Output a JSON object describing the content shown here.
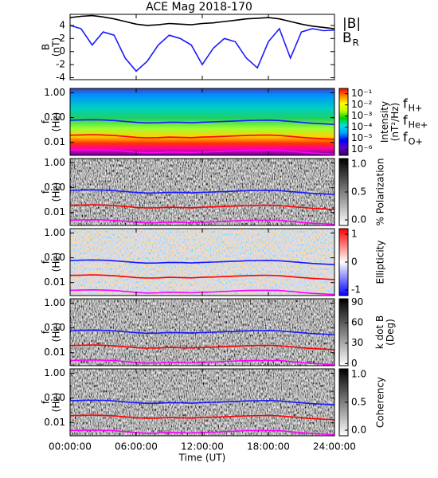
{
  "chart_data": [
    {
      "type": "line",
      "title": "ACE Mag 2018-170",
      "ylabel": [
        "B",
        "(nT)"
      ],
      "x": [
        0,
        1,
        2,
        3,
        4,
        5,
        6,
        7,
        8,
        9,
        10,
        11,
        12,
        13,
        14,
        15,
        16,
        17,
        18,
        19,
        20,
        21,
        22,
        23,
        24
      ],
      "xlim": [
        0,
        24
      ],
      "ylim": [
        -4.3,
        5.7
      ],
      "yticks": [
        -4,
        -2,
        0,
        2,
        4
      ],
      "series": [
        {
          "name": "|B|",
          "color": "#000000",
          "values": [
            5.2,
            5.4,
            5.5,
            5.3,
            5.0,
            4.6,
            4.2,
            4.0,
            4.1,
            4.3,
            4.2,
            4.1,
            4.3,
            4.4,
            4.6,
            4.8,
            5.0,
            5.1,
            5.2,
            5.0,
            4.6,
            4.2,
            3.9,
            3.7,
            3.5
          ]
        },
        {
          "name": "B",
          "subscript": "R",
          "color": "#1a1aff",
          "values": [
            4.0,
            3.5,
            1.0,
            3.0,
            2.5,
            -1.0,
            -3.0,
            -1.5,
            1.0,
            2.5,
            2.0,
            1.0,
            -2.0,
            0.5,
            2.0,
            1.5,
            -1.0,
            -2.5,
            1.5,
            3.5,
            -1.0,
            3.0,
            3.5,
            3.2,
            3.3
          ]
        }
      ]
    },
    {
      "type": "spectrogram",
      "ylabel": [
        "f",
        "(Hz)"
      ],
      "yscale": "log",
      "ylim": [
        0.003,
        1.5
      ],
      "yticks": [
        {
          "value": 1,
          "label": "1.00"
        },
        {
          "value": 0.1,
          "label": "0.10"
        },
        {
          "value": 0.01,
          "label": "0.01"
        }
      ],
      "legend": true,
      "colorbar": {
        "label": [
          "Intensity",
          "(nT²/Hz)"
        ],
        "scale": "log",
        "clim": [
          3e-07,
          0.3
        ],
        "colors": [
          "#300060",
          "#6000c0",
          "#0000ff",
          "#00a0ff",
          "#00e0e0",
          "#00d000",
          "#c0ff00",
          "#ffff00",
          "#ff8000",
          "#ff0000"
        ],
        "ticks": [
          {
            "value": 0.1,
            "label": "10⁻¹"
          },
          {
            "value": 0.01,
            "label": "10⁻²"
          },
          {
            "value": 0.001,
            "label": "10⁻³"
          },
          {
            "value": 0.0001,
            "label": "10⁻⁴"
          },
          {
            "value": 1e-05,
            "label": "10⁻⁵"
          },
          {
            "value": 1e-06,
            "label": "10⁻⁶"
          }
        ]
      }
    },
    {
      "type": "spectrogram",
      "ylabel": [
        "f",
        "(Hz)"
      ],
      "yscale": "log",
      "ylim": [
        0.003,
        1.5
      ],
      "yticks": [
        {
          "value": 1,
          "label": "1.00"
        },
        {
          "value": 0.1,
          "label": "0.10"
        },
        {
          "value": 0.01,
          "label": "0.01"
        }
      ],
      "colorbar": {
        "label": [
          "% Polarization"
        ],
        "clim": [
          -0.1,
          1.1
        ],
        "colors": [
          "#ffffff",
          "#000000"
        ],
        "ticks": [
          {
            "value": 0,
            "label": "0.0"
          },
          {
            "value": 0.5,
            "label": "0.5"
          },
          {
            "value": 1,
            "label": "1.0"
          }
        ]
      }
    },
    {
      "type": "spectrogram",
      "ylabel": [
        "f",
        "(Hz)"
      ],
      "yscale": "log",
      "ylim": [
        0.003,
        1.5
      ],
      "yticks": [
        {
          "value": 1,
          "label": "1.00"
        },
        {
          "value": 0.1,
          "label": "0.10"
        },
        {
          "value": 0.01,
          "label": "0.01"
        }
      ],
      "colorbar": {
        "label": [
          "Ellipticity"
        ],
        "clim": [
          -1.2,
          1.2
        ],
        "colors": [
          "#0000ff",
          "#ffffff",
          "#ff0000"
        ],
        "ticks": [
          -1,
          0,
          1
        ]
      }
    },
    {
      "type": "spectrogram",
      "ylabel": [
        "f",
        "(Hz)"
      ],
      "yscale": "log",
      "ylim": [
        0.003,
        1.5
      ],
      "yticks": [
        {
          "value": 1,
          "label": "1.00"
        },
        {
          "value": 0.1,
          "label": "0.10"
        },
        {
          "value": 0.01,
          "label": "0.01"
        }
      ],
      "colorbar": {
        "label": [
          "k dot B",
          "(Deg)"
        ],
        "clim": [
          -3,
          95
        ],
        "colors": [
          "#ffffff",
          "#000000"
        ],
        "ticks": [
          0,
          30,
          60,
          90
        ]
      }
    },
    {
      "type": "spectrogram",
      "ylabel": [
        "f",
        "(Hz)"
      ],
      "yscale": "log",
      "ylim": [
        0.003,
        1.5
      ],
      "yticks": [
        {
          "value": 1,
          "label": "1.00"
        },
        {
          "value": 0.1,
          "label": "0.10"
        },
        {
          "value": 0.01,
          "label": "0.01"
        }
      ],
      "colorbar": {
        "label": [
          "Coherency"
        ],
        "clim": [
          -0.1,
          1.1
        ],
        "colors": [
          "#ffffff",
          "#000000"
        ],
        "ticks": [
          {
            "value": 0,
            "label": "0.0"
          },
          {
            "value": 0.5,
            "label": "0.5"
          },
          {
            "value": 1,
            "label": "1.0"
          }
        ]
      },
      "xlabel": "Time (UT)",
      "xticks": [
        {
          "value": 0,
          "label": "00:00:00"
        },
        {
          "value": 6,
          "label": "06:00:00"
        },
        {
          "value": 12,
          "label": "12:00:00"
        },
        {
          "value": 18,
          "label": "18:00:00"
        },
        {
          "value": 24,
          "label": "24:00:00"
        }
      ]
    }
  ],
  "overlay": {
    "x": [
      0,
      1,
      2,
      3,
      4,
      5,
      6,
      7,
      8,
      9,
      10,
      11,
      12,
      13,
      14,
      15,
      16,
      17,
      18,
      19,
      20,
      21,
      22,
      23,
      24
    ],
    "series": [
      {
        "name": "f",
        "subscript": "H+",
        "color": "#1a1aff",
        "values": [
          0.078,
          0.08,
          0.082,
          0.08,
          0.076,
          0.07,
          0.064,
          0.061,
          0.062,
          0.065,
          0.064,
          0.062,
          0.065,
          0.067,
          0.07,
          0.073,
          0.076,
          0.078,
          0.079,
          0.076,
          0.07,
          0.064,
          0.059,
          0.056,
          0.053
        ]
      },
      {
        "name": "f",
        "subscript": "He+",
        "color": "#ff0000",
        "values": [
          0.0195,
          0.02,
          0.0205,
          0.02,
          0.019,
          0.0175,
          0.016,
          0.0153,
          0.0155,
          0.0163,
          0.016,
          0.0155,
          0.0163,
          0.0168,
          0.0175,
          0.0183,
          0.019,
          0.0195,
          0.0198,
          0.019,
          0.0175,
          0.016,
          0.0148,
          0.014,
          0.0133
        ]
      },
      {
        "name": "f",
        "subscript": "O+",
        "color": "#ff00ff",
        "values": [
          0.0049,
          0.005,
          0.0051,
          0.005,
          0.0048,
          0.0044,
          0.004,
          0.0038,
          0.0039,
          0.0041,
          0.004,
          0.0039,
          0.0041,
          0.0042,
          0.0044,
          0.0046,
          0.0048,
          0.0049,
          0.0049,
          0.0048,
          0.0044,
          0.004,
          0.0037,
          0.0035,
          0.0033
        ]
      }
    ]
  }
}
